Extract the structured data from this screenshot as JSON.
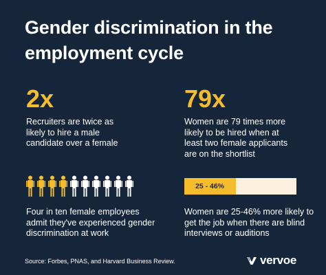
{
  "title_line1": "Gender discrimination in the",
  "title_line2": "employment cycle",
  "stats": [
    {
      "value": "2x",
      "lines": [
        "Recruiters are twice as",
        "likely to hire a male",
        "candidate over a female"
      ]
    },
    {
      "value": "79x",
      "lines": [
        "Women are 79 times more",
        "likely to be hired when at",
        "least two female applicants",
        "are on the shortlist"
      ]
    }
  ],
  "people": {
    "total": 10,
    "highlighted": 4,
    "lines": [
      "Four in ten female employees",
      "admit they've experienced gender",
      "discrimination at work"
    ]
  },
  "blind": {
    "bar_label": "25 - 46%",
    "fill_fraction": 0.46,
    "lines": [
      "Women are 25-46% more likely to",
      "get the job when there are blind",
      "interviews or auditions"
    ]
  },
  "source": "Source: Forbes, PNAS, and Harvard Business Review.",
  "logo": {
    "text": "vervoe",
    "icon": "vervoe-v-logo-icon"
  },
  "colors": {
    "background": "#16263a",
    "accent": "#f5bd2e",
    "bar_track": "#fbf1de",
    "person_inactive": "#ffffff"
  }
}
